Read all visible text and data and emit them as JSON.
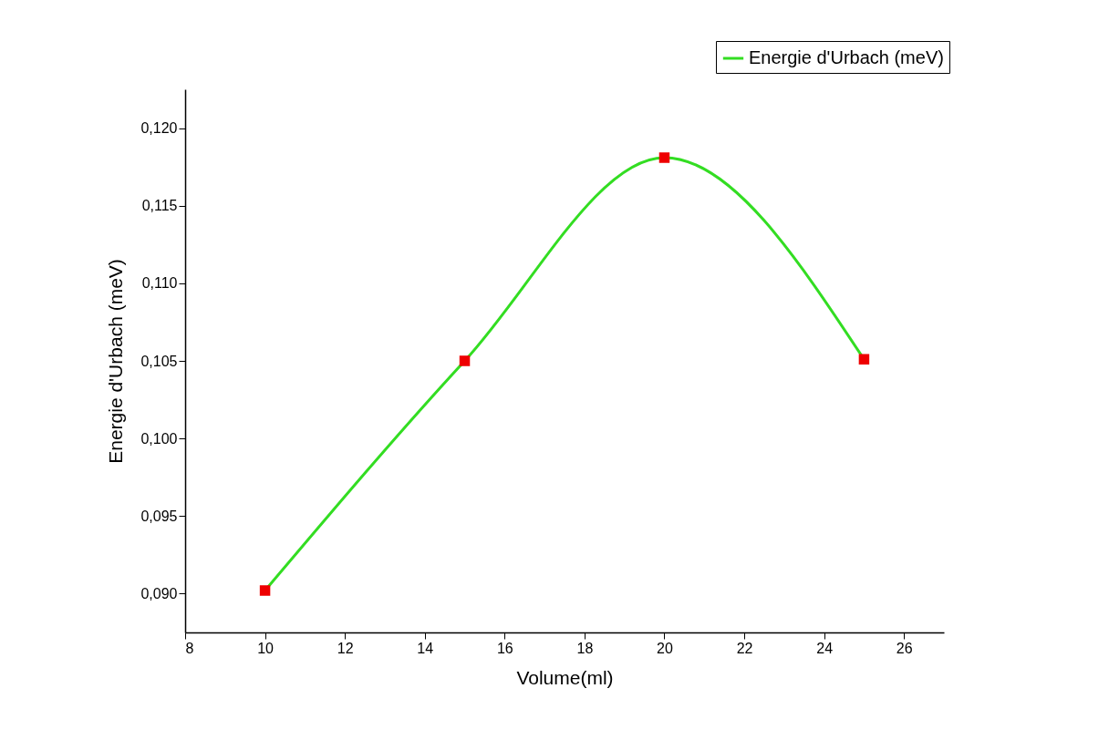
{
  "chart_data": {
    "type": "line",
    "xlabel": "Volume(ml)",
    "ylabel": "Energie d'Urbach (meV)",
    "x": [
      10,
      15,
      20,
      25
    ],
    "series": [
      {
        "name": "Energie d'Urbach (meV)",
        "color": "#33dd22",
        "values": [
          0.0902,
          0.105,
          0.1181,
          0.1051
        ]
      }
    ],
    "xlim": [
      8,
      27
    ],
    "xticks": [
      8,
      10,
      12,
      14,
      16,
      18,
      20,
      22,
      24,
      26
    ],
    "ylim": [
      0.0875,
      0.1225
    ],
    "yticks": [
      {
        "value": 0.09,
        "label": "0,090"
      },
      {
        "value": 0.095,
        "label": "0,095"
      },
      {
        "value": 0.1,
        "label": "0,100"
      },
      {
        "value": 0.105,
        "label": "0,105"
      },
      {
        "value": 0.11,
        "label": "0,110"
      },
      {
        "value": 0.115,
        "label": "0,115"
      },
      {
        "value": 0.12,
        "label": "0,120"
      }
    ],
    "marker": "square",
    "legend": "top right",
    "grid": false
  }
}
